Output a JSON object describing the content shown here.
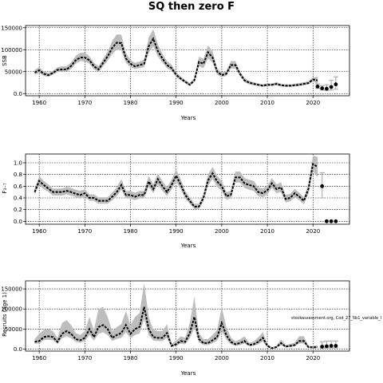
{
  "chart_data": {
    "title": "SQ then zero F",
    "note": "stockassessment.org, Cod_27_5b1_variable_I",
    "panels": [
      {
        "type": "line",
        "ylabel": "SSB",
        "xlabel": "Years",
        "xlim": [
          1957,
          2028
        ],
        "ylim": [
          -5000,
          155000
        ],
        "xticks": [
          1960,
          1970,
          1980,
          1990,
          2000,
          2010,
          2020
        ],
        "yticks": [
          0,
          50000,
          100000,
          150000
        ],
        "grid": true,
        "years": [
          1959,
          1960,
          1961,
          1962,
          1963,
          1964,
          1965,
          1966,
          1967,
          1968,
          1969,
          1970,
          1971,
          1972,
          1973,
          1974,
          1975,
          1976,
          1977,
          1978,
          1979,
          1980,
          1981,
          1982,
          1983,
          1984,
          1985,
          1986,
          1987,
          1988,
          1989,
          1990,
          1991,
          1992,
          1993,
          1994,
          1995,
          1996,
          1997,
          1998,
          1999,
          2000,
          2001,
          2002,
          2003,
          2004,
          2005,
          2006,
          2007,
          2008,
          2009,
          2010,
          2011,
          2012,
          2013,
          2014,
          2015,
          2016,
          2017,
          2018,
          2019,
          2020,
          2021
        ],
        "estimate": [
          48000,
          53000,
          45000,
          42000,
          47000,
          54000,
          55000,
          55000,
          63000,
          76000,
          82000,
          82000,
          76000,
          62000,
          55000,
          70000,
          85000,
          104000,
          116000,
          115000,
          80000,
          68000,
          62000,
          65000,
          68000,
          108000,
          125000,
          97000,
          80000,
          65000,
          58000,
          43000,
          34000,
          27000,
          20000,
          30000,
          72000,
          68000,
          94000,
          82000,
          50000,
          42000,
          45000,
          65000,
          65000,
          45000,
          30000,
          25000,
          22000,
          20000,
          18000,
          20000,
          20000,
          22000,
          19000,
          18000,
          18000,
          19000,
          20000,
          22000,
          24000,
          32000,
          30000
        ],
        "lower": [
          43000,
          47000,
          40000,
          38000,
          43000,
          49000,
          50000,
          50000,
          56000,
          68000,
          74000,
          73000,
          68000,
          55000,
          49000,
          62000,
          75000,
          90000,
          100000,
          98000,
          70000,
          60000,
          56000,
          58000,
          60000,
          93000,
          107000,
          85000,
          71000,
          58000,
          52000,
          38000,
          30000,
          23000,
          17000,
          26000,
          62000,
          58000,
          80000,
          70000,
          43000,
          37000,
          40000,
          57000,
          57000,
          40000,
          26000,
          21000,
          19000,
          17000,
          15000,
          17000,
          17000,
          19000,
          16000,
          15000,
          15000,
          16000,
          17000,
          19000,
          21000,
          28000,
          22000
        ],
        "upper": [
          54000,
          60000,
          51000,
          47000,
          52000,
          60000,
          62000,
          62000,
          71000,
          86000,
          93000,
          93000,
          85000,
          70000,
          62000,
          79000,
          96000,
          120000,
          135000,
          134000,
          92000,
          77000,
          70000,
          73000,
          78000,
          128000,
          147000,
          112000,
          91000,
          74000,
          66000,
          49000,
          39000,
          31000,
          24000,
          35000,
          84000,
          79000,
          110000,
          96000,
          58000,
          48000,
          51000,
          74000,
          74000,
          51000,
          35000,
          29000,
          26000,
          23000,
          21000,
          23000,
          23000,
          26000,
          22000,
          21000,
          21000,
          22000,
          24000,
          26000,
          28000,
          37000,
          38000
        ],
        "projection": {
          "years": [
            2021,
            2022,
            2023,
            2024,
            2025
          ],
          "median": [
            16000,
            12000,
            11000,
            15000,
            21000
          ],
          "lower": [
            12000,
            8000,
            7000,
            8000,
            10000
          ],
          "upper": [
            22000,
            18000,
            20000,
            30000,
            38000
          ]
        }
      },
      {
        "type": "line",
        "ylabel": "F₃₋₇",
        "xlabel": "Years",
        "xlim": [
          1957,
          2028
        ],
        "ylim": [
          -0.05,
          1.15
        ],
        "xticks": [
          1960,
          1970,
          1980,
          1990,
          2000,
          2010,
          2020
        ],
        "yticks": [
          0.0,
          0.2,
          0.4,
          0.6,
          0.8,
          1.0
        ],
        "grid": true,
        "years": [
          1959,
          1960,
          1961,
          1962,
          1963,
          1964,
          1965,
          1966,
          1967,
          1968,
          1969,
          1970,
          1971,
          1972,
          1973,
          1974,
          1975,
          1976,
          1977,
          1978,
          1979,
          1980,
          1981,
          1982,
          1983,
          1984,
          1985,
          1986,
          1987,
          1988,
          1989,
          1990,
          1991,
          1992,
          1993,
          1994,
          1995,
          1996,
          1997,
          1998,
          1999,
          2000,
          2001,
          2002,
          2003,
          2004,
          2005,
          2006,
          2007,
          2008,
          2009,
          2010,
          2011,
          2012,
          2013,
          2014,
          2015,
          2016,
          2017,
          2018,
          2019,
          2020,
          2021
        ],
        "estimate": [
          0.5,
          0.69,
          0.62,
          0.56,
          0.5,
          0.5,
          0.5,
          0.52,
          0.5,
          0.47,
          0.45,
          0.48,
          0.4,
          0.4,
          0.35,
          0.35,
          0.35,
          0.42,
          0.5,
          0.62,
          0.45,
          0.45,
          0.42,
          0.45,
          0.45,
          0.68,
          0.55,
          0.72,
          0.6,
          0.5,
          0.62,
          0.78,
          0.63,
          0.45,
          0.35,
          0.25,
          0.25,
          0.4,
          0.7,
          0.82,
          0.68,
          0.6,
          0.43,
          0.45,
          0.75,
          0.75,
          0.65,
          0.62,
          0.6,
          0.5,
          0.48,
          0.53,
          0.65,
          0.55,
          0.58,
          0.38,
          0.4,
          0.48,
          0.42,
          0.35,
          0.55,
          0.98,
          0.93
        ],
        "lower": [
          0.45,
          0.62,
          0.55,
          0.5,
          0.44,
          0.44,
          0.44,
          0.46,
          0.44,
          0.41,
          0.39,
          0.42,
          0.35,
          0.35,
          0.3,
          0.3,
          0.3,
          0.36,
          0.43,
          0.54,
          0.39,
          0.39,
          0.36,
          0.39,
          0.39,
          0.59,
          0.48,
          0.63,
          0.52,
          0.43,
          0.54,
          0.68,
          0.55,
          0.39,
          0.3,
          0.21,
          0.21,
          0.34,
          0.61,
          0.72,
          0.59,
          0.52,
          0.37,
          0.39,
          0.66,
          0.66,
          0.57,
          0.54,
          0.52,
          0.43,
          0.41,
          0.46,
          0.57,
          0.48,
          0.5,
          0.32,
          0.34,
          0.41,
          0.36,
          0.29,
          0.47,
          0.86,
          0.75
        ],
        "upper": [
          0.56,
          0.77,
          0.69,
          0.63,
          0.56,
          0.56,
          0.56,
          0.59,
          0.57,
          0.54,
          0.52,
          0.55,
          0.46,
          0.46,
          0.41,
          0.41,
          0.41,
          0.49,
          0.58,
          0.72,
          0.52,
          0.52,
          0.49,
          0.52,
          0.52,
          0.78,
          0.63,
          0.82,
          0.69,
          0.58,
          0.71,
          0.89,
          0.72,
          0.52,
          0.41,
          0.3,
          0.3,
          0.47,
          0.8,
          0.93,
          0.78,
          0.69,
          0.5,
          0.52,
          0.85,
          0.85,
          0.74,
          0.71,
          0.69,
          0.58,
          0.56,
          0.61,
          0.74,
          0.63,
          0.67,
          0.45,
          0.47,
          0.55,
          0.49,
          0.41,
          0.64,
          1.12,
          1.1
        ],
        "projection": {
          "years": [
            2022,
            2023,
            2024,
            2025
          ],
          "median": [
            0.6,
            0.0,
            0.0,
            0.0
          ],
          "lower": [
            0.4,
            0.0,
            0.0,
            0.0
          ],
          "upper": [
            0.83,
            0.0,
            0.0,
            0.0
          ]
        }
      },
      {
        "type": "line",
        "ylabel": "Recruits (age 1)",
        "xlabel": "Years",
        "xlim": [
          1957,
          2028
        ],
        "ylim": [
          -5000,
          170000
        ],
        "xticks": [
          1960,
          1970,
          1980,
          1990,
          2000,
          2010,
          2020
        ],
        "yticks": [
          0,
          50000,
          100000,
          150000
        ],
        "grid": true,
        "years": [
          1959,
          1960,
          1961,
          1962,
          1963,
          1964,
          1965,
          1966,
          1967,
          1968,
          1969,
          1970,
          1971,
          1972,
          1973,
          1974,
          1975,
          1976,
          1977,
          1978,
          1979,
          1980,
          1981,
          1982,
          1983,
          1984,
          1985,
          1986,
          1987,
          1988,
          1989,
          1990,
          1991,
          1992,
          1993,
          1994,
          1995,
          1996,
          1997,
          1998,
          1999,
          2000,
          2001,
          2002,
          2003,
          2004,
          2005,
          2006,
          2007,
          2008,
          2009,
          2010,
          2011,
          2012,
          2013,
          2014,
          2015,
          2016,
          2017,
          2018,
          2019,
          2020,
          2021
        ],
        "estimate": [
          18000,
          20000,
          30000,
          32000,
          30000,
          18000,
          38000,
          45000,
          38000,
          25000,
          22000,
          28000,
          50000,
          30000,
          55000,
          60000,
          50000,
          28000,
          35000,
          40000,
          60000,
          38000,
          50000,
          55000,
          105000,
          50000,
          30000,
          28000,
          28000,
          40000,
          8000,
          12000,
          20000,
          18000,
          40000,
          80000,
          25000,
          15000,
          15000,
          22000,
          30000,
          65000,
          35000,
          18000,
          12000,
          15000,
          20000,
          10000,
          12000,
          18000,
          28000,
          8000,
          2000,
          5000,
          15000,
          6000,
          8000,
          10000,
          20000,
          20000,
          5000,
          4000,
          5000
        ],
        "lower": [
          13000,
          14000,
          22000,
          23000,
          22000,
          13000,
          27000,
          32000,
          27000,
          18000,
          16000,
          20000,
          35000,
          21000,
          38000,
          42000,
          35000,
          20000,
          25000,
          28000,
          42000,
          27000,
          35000,
          39000,
          75000,
          35000,
          21000,
          20000,
          20000,
          28000,
          5000,
          8000,
          14000,
          12000,
          27000,
          52000,
          17000,
          10000,
          10000,
          15000,
          21000,
          45000,
          24000,
          12000,
          8000,
          10000,
          14000,
          7000,
          8000,
          12000,
          19000,
          5000,
          1000,
          3000,
          10000,
          4000,
          5000,
          7000,
          14000,
          14000,
          3000,
          2000,
          3000
        ],
        "upper": [
          25000,
          38000,
          48000,
          50000,
          45000,
          28000,
          65000,
          72000,
          60000,
          40000,
          35000,
          45000,
          80000,
          48000,
          100000,
          105000,
          80000,
          45000,
          55000,
          62000,
          95000,
          60000,
          80000,
          90000,
          165000,
          80000,
          48000,
          45000,
          45000,
          62000,
          13000,
          20000,
          32000,
          28000,
          65000,
          130000,
          40000,
          25000,
          25000,
          35000,
          48000,
          105000,
          55000,
          29000,
          19000,
          24000,
          32000,
          16000,
          19000,
          29000,
          42000,
          13000,
          4000,
          8000,
          24000,
          10000,
          13000,
          16000,
          32000,
          32000,
          8000,
          8000,
          10000
        ],
        "projection": {
          "years": [
            2022,
            2023,
            2024,
            2025
          ],
          "median": [
            6000,
            7000,
            8000,
            8000
          ],
          "lower": [
            3000,
            3000,
            3000,
            3000
          ],
          "upper": [
            18000,
            20000,
            20000,
            20000
          ]
        }
      }
    ]
  }
}
